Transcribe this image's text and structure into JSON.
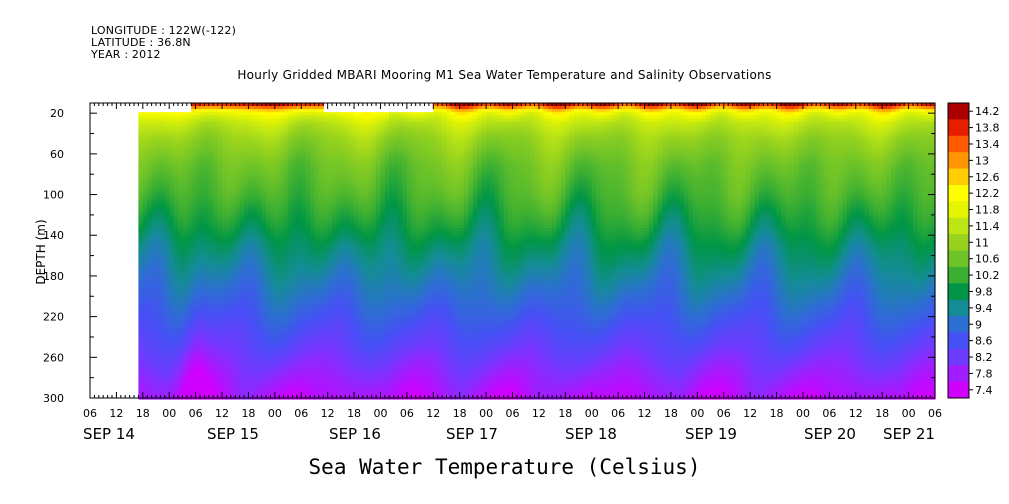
{
  "header": {
    "longitude": "LONGITUDE : 122W(-122)",
    "latitude": "LATITUDE : 36.8N",
    "year": "YEAR : 2012"
  },
  "chart_data": {
    "type": "heatmap",
    "title": "Hourly Gridded MBARI Mooring M1 Sea Water Temperature and Salinity Observations",
    "xlabel": "Sea Water Temperature (Celsius)",
    "ylabel": "DEPTH (m)",
    "y_axis": {
      "range": [
        10,
        300
      ],
      "inverted": true,
      "ticks": [
        20,
        60,
        100,
        140,
        180,
        220,
        260,
        300
      ]
    },
    "x_axis": {
      "range_hours_from_sep14_00": [
        -18,
        174
      ],
      "hour_ticks": [
        "06",
        "12",
        "18",
        "00",
        "06",
        "12",
        "18",
        "00",
        "06",
        "12",
        "18",
        "00",
        "06",
        "12",
        "18",
        "00",
        "06",
        "12",
        "18",
        "00",
        "06",
        "12",
        "18",
        "00",
        "06",
        "12",
        "18",
        "00",
        "06",
        "12",
        "18",
        "00",
        "06"
      ],
      "day_labels": [
        "SEP 14",
        "SEP 15",
        "SEP 16",
        "SEP 17",
        "SEP 18",
        "SEP 19",
        "SEP 20",
        "SEP 21"
      ]
    },
    "colorbar": {
      "levels": [
        14.2,
        13.8,
        13.4,
        13,
        12.6,
        12.2,
        11.8,
        11.4,
        11,
        10.6,
        10.2,
        9.8,
        9.4,
        9,
        8.6,
        8.2,
        7.8,
        7.4
      ]
    },
    "field_summary": {
      "surface_max": 14.2,
      "bottom_min": 7.4,
      "missing_spans_hours": [
        [
          -18,
          -7
        ],
        [
          -7,
          5,
          "above 20m"
        ],
        [
          35,
          60,
          "above 20m"
        ]
      ]
    }
  }
}
